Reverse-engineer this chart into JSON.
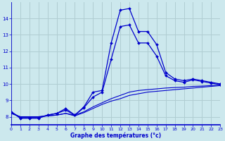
{
  "xlabel": "Graphe des températures (°c)",
  "background_color": "#cce8ed",
  "grid_color": "#b0cdd2",
  "line_color": "#0000cc",
  "hours": [
    0,
    1,
    2,
    3,
    4,
    5,
    6,
    7,
    8,
    9,
    10,
    11,
    12,
    13,
    14,
    15,
    16,
    17,
    18,
    19,
    20,
    21,
    22,
    23
  ],
  "temp_actual": [
    8.3,
    7.9,
    7.9,
    7.9,
    8.1,
    8.2,
    8.5,
    8.1,
    8.6,
    9.5,
    9.6,
    12.5,
    14.5,
    14.6,
    13.2,
    13.2,
    12.4,
    10.7,
    10.3,
    10.2,
    10.3,
    10.2,
    10.1,
    10.0
  ],
  "temp_line2": [
    8.3,
    7.95,
    7.95,
    7.95,
    8.1,
    8.2,
    8.4,
    8.1,
    8.55,
    9.2,
    9.5,
    11.5,
    13.5,
    13.6,
    12.5,
    12.5,
    11.7,
    10.5,
    10.2,
    10.1,
    10.25,
    10.15,
    10.05,
    9.95
  ],
  "temp_smooth1": [
    8.2,
    8.0,
    8.0,
    8.0,
    8.05,
    8.1,
    8.2,
    8.1,
    8.3,
    8.6,
    8.85,
    9.1,
    9.3,
    9.5,
    9.6,
    9.65,
    9.7,
    9.75,
    9.78,
    9.8,
    9.85,
    9.87,
    9.9,
    9.92
  ],
  "temp_smooth2": [
    8.2,
    8.0,
    8.0,
    8.0,
    8.05,
    8.1,
    8.2,
    8.05,
    8.25,
    8.5,
    8.75,
    8.95,
    9.1,
    9.3,
    9.4,
    9.5,
    9.55,
    9.6,
    9.65,
    9.7,
    9.75,
    9.8,
    9.85,
    9.9
  ],
  "ylim": [
    7.5,
    15.0
  ],
  "yticks": [
    8,
    9,
    10,
    11,
    12,
    13,
    14
  ],
  "xlim": [
    0,
    23
  ],
  "xticks": [
    0,
    1,
    2,
    3,
    4,
    5,
    6,
    7,
    8,
    9,
    10,
    11,
    12,
    13,
    14,
    15,
    16,
    17,
    18,
    19,
    20,
    21,
    22,
    23
  ]
}
